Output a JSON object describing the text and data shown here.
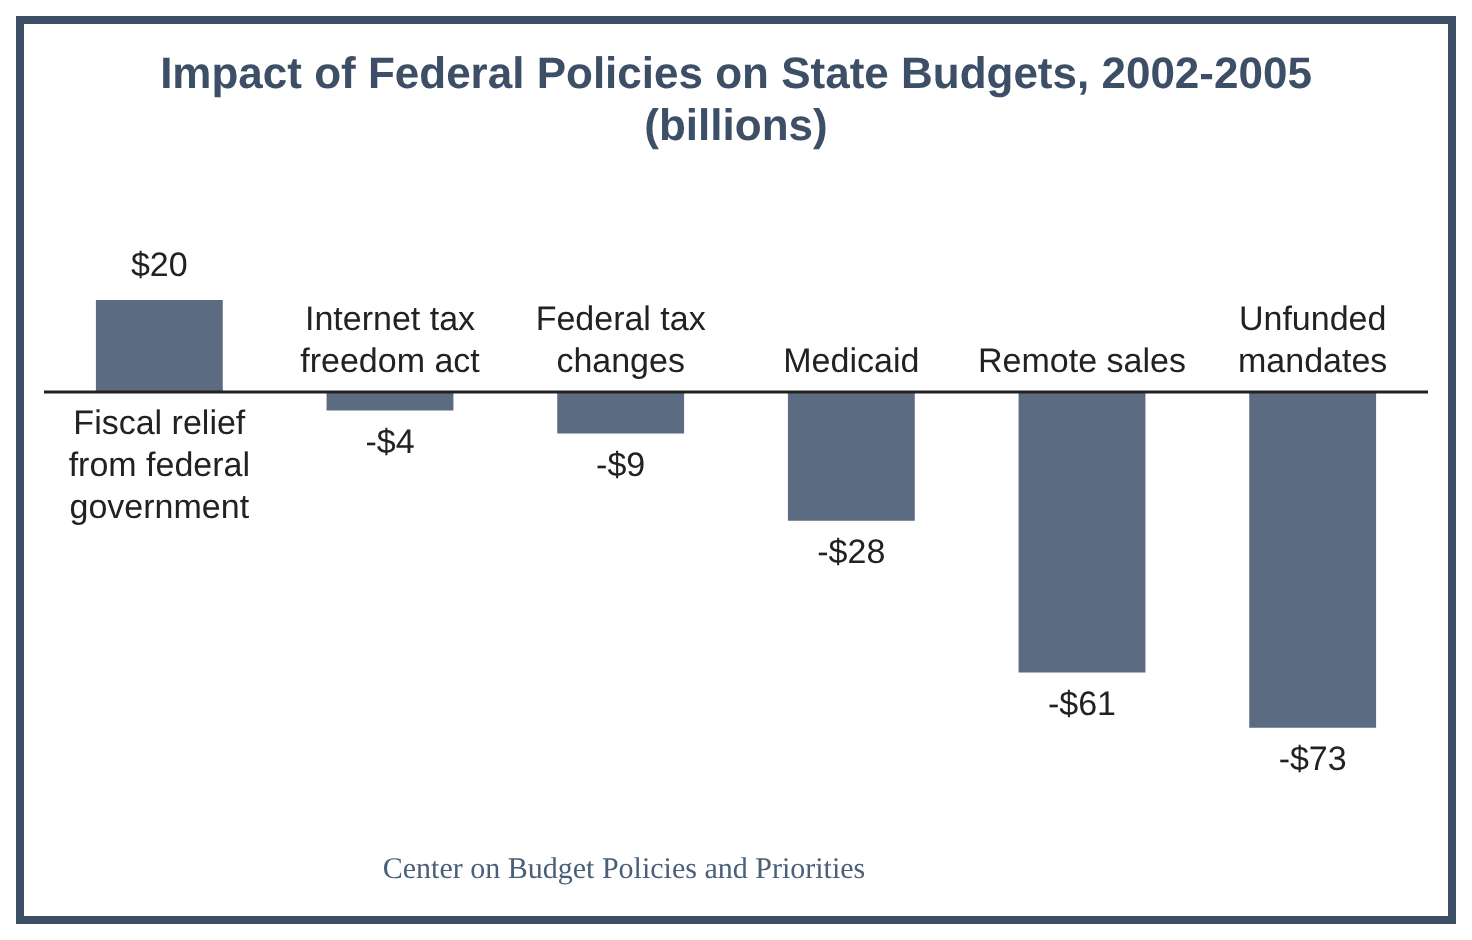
{
  "chart_data": {
    "type": "bar",
    "title": "Impact of Federal Policies on State Budgets, 2002-2005",
    "subtitle": "(billions)",
    "categories": [
      "Fiscal relief from federal government",
      "Internet tax freedom act",
      "Federal tax changes",
      "Medicaid",
      "Remote sales",
      "Unfunded mandates"
    ],
    "values": [
      20,
      -4,
      -9,
      -28,
      -61,
      -73
    ],
    "value_labels": [
      "$20",
      "-$4",
      "-$9",
      "-$28",
      "-$61",
      "-$73"
    ],
    "color": "#5b6b82",
    "legend": false,
    "annotations": [
      "Center on Budget Policies and Priorities"
    ]
  }
}
